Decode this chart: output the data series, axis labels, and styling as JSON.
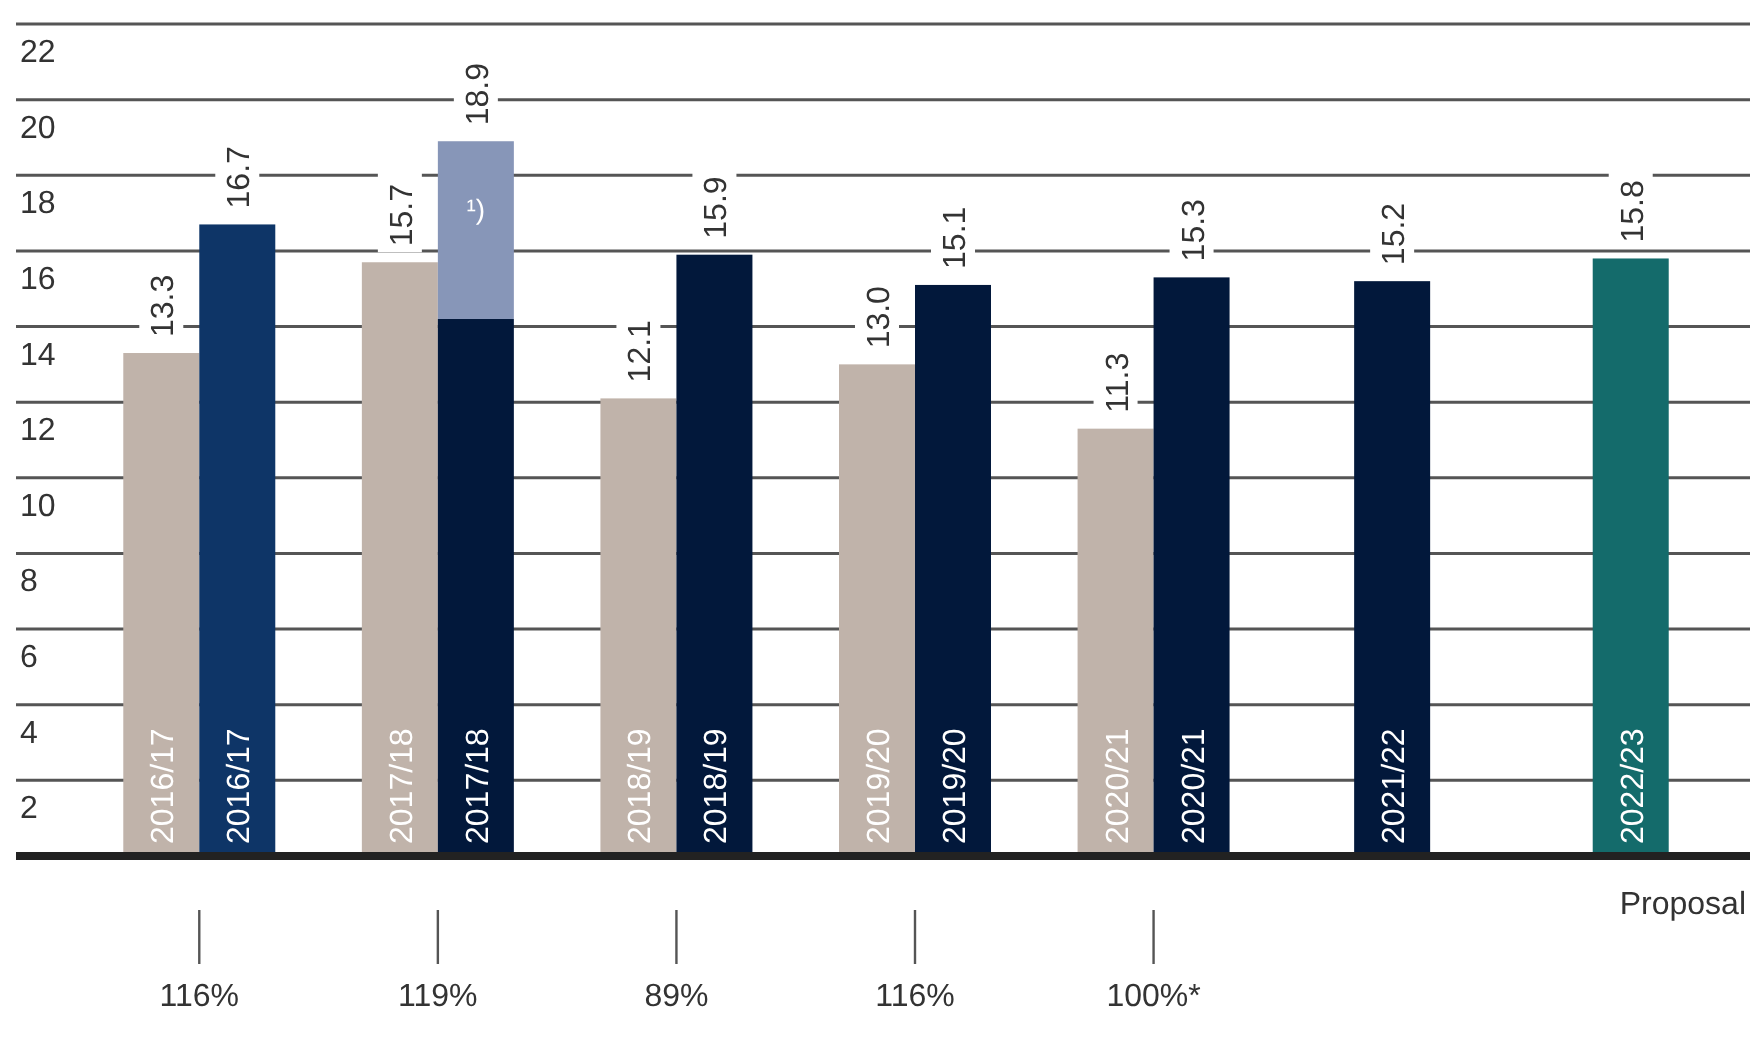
{
  "chart_data": {
    "type": "bar",
    "categories": [
      "2016/17",
      "2017/18",
      "2018/19",
      "2019/20",
      "2020/21",
      "2021/22",
      "2022/23"
    ],
    "series": [
      {
        "color": "#c0b3aa",
        "values": [
          13.3,
          15.7,
          12.1,
          13.0,
          11.3,
          null,
          null
        ],
        "value_labels": [
          "13.3",
          "15.7",
          "12.1",
          "13.0",
          "11.3",
          null,
          null
        ]
      },
      {
        "colors": [
          "#0e3567",
          "#02183b",
          "#02183b",
          "#02183b",
          "#02183b",
          "#02183b",
          "#146b6b"
        ],
        "values": [
          16.7,
          14.2,
          15.9,
          15.1,
          15.3,
          15.2,
          15.8
        ],
        "value_labels": [
          "16.7",
          null,
          "15.9",
          "15.1",
          "15.3",
          "15.2",
          "15.8"
        ]
      },
      {
        "color": "#8796b8",
        "base": [
          null,
          14.2,
          null,
          null,
          null,
          null,
          null
        ],
        "values": [
          null,
          4.7,
          null,
          null,
          null,
          null,
          null
        ],
        "value_labels": [
          null,
          "18.9",
          null,
          null,
          null,
          null,
          null
        ]
      }
    ],
    "ylim": [
      0,
      22
    ],
    "yticks": [
      2,
      4,
      6,
      8,
      10,
      12,
      14,
      16,
      18,
      20,
      22
    ],
    "grid": true,
    "annotations": [
      "¹)",
      "116%",
      "119%",
      "89%",
      "116%",
      "100%*",
      "Proposal"
    ]
  }
}
